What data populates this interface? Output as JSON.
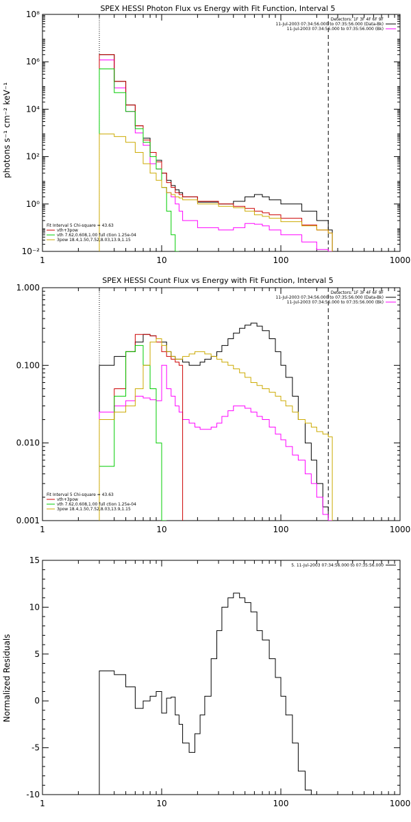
{
  "chart_data": [
    {
      "type": "line",
      "title": "SPEX HESSI Photon Flux vs Energy with Fit Function, Interval 5",
      "ylabel": "photons s⁻¹ cm⁻² keV⁻¹",
      "xlabel": "",
      "xscale": "log",
      "yscale": "log",
      "xlim": [
        1,
        1000
      ],
      "ylim": [
        0.01,
        100000000
      ],
      "xticks": [
        1,
        10,
        100,
        1000
      ],
      "xtick_labels": [
        "1",
        "10",
        "100",
        "1000"
      ],
      "yticks": [
        0.01,
        1,
        100,
        10000,
        1000000,
        100000000
      ],
      "ytick_labels": [
        "10⁻²",
        "10⁰",
        "10²",
        "10⁴",
        "10⁶",
        "10⁸"
      ],
      "vlines": [
        {
          "x": 3,
          "style": "dotted"
        },
        {
          "x": 250,
          "style": "dashed"
        }
      ],
      "legend_top": [
        {
          "text": "Detectors: 1F 3F 4F 6F 9F",
          "color": ""
        },
        {
          "text": "11-Jul-2003 07:34:56.000 to 07:35:56.000 (Data-Bk)",
          "color": "#000000"
        },
        {
          "text": "11-Jul-2003 07:34:56.000 to 07:35:56.000 (Bk)",
          "color": "#ff00ff"
        }
      ],
      "legend_bottom": [
        {
          "text": "Fit Interval 5   Chi-square = 43.63",
          "color": ""
        },
        {
          "text": "vth+3pow",
          "color": "#cc0000"
        },
        {
          "text": "vth 7.62,0.608,1.00  full ction 1.25e-04",
          "color": "#00cc00"
        },
        {
          "text": "3pow 18.4,1.50,7.52,8.03,13.9,1.15",
          "color": "#ccaa00"
        }
      ],
      "edges": [
        3,
        4,
        5,
        6,
        7,
        8,
        9,
        10,
        11,
        12,
        13,
        14,
        15,
        20,
        30,
        40,
        50,
        60,
        70,
        80,
        100,
        150,
        200,
        250,
        270
      ],
      "series": [
        {
          "name": "",
          "color": "#000000",
          "values": [
            2000000,
            150000,
            15000,
            2000,
            600,
            150,
            70,
            20,
            10,
            6,
            4,
            3,
            2,
            1.2,
            1,
            1.3,
            2,
            2.5,
            2,
            1.5,
            1,
            0.5,
            0.2,
            0.08
          ]
        },
        {
          "name": "",
          "color": "#ff00ff",
          "values": [
            1200000,
            80000,
            8000,
            1000,
            300,
            50,
            30,
            5,
            3,
            2,
            1,
            0.5,
            0.2,
            0.1,
            0.08,
            0.1,
            0.15,
            0.14,
            0.12,
            0.08,
            0.05,
            0.025,
            0.012,
            0.008
          ]
        },
        {
          "name": "vth+3pow",
          "color": "#cc0000",
          "values": [
            2000000,
            150000,
            15000,
            2000,
            500,
            150,
            60,
            20,
            8,
            5,
            3,
            2.5,
            2,
            1.3,
            1,
            0.8,
            0.65,
            0.5,
            0.42,
            0.35,
            0.25,
            0.13,
            0.08,
            0.06
          ]
        },
        {
          "name": "vth 7.62,0.608,1.00  full ction 1.25e-04",
          "color": "#00cc00",
          "values": [
            500000,
            50000,
            8000,
            1500,
            400,
            100,
            30,
            5,
            0.5,
            0.05,
            0.01
          ]
        },
        {
          "name": "3pow 18.4,1.50,7.52,8.03,13.9,1.15",
          "color": "#ccaa00",
          "values": [
            900,
            700,
            400,
            150,
            50,
            20,
            10,
            5,
            3,
            2.5,
            2,
            1.8,
            1.5,
            1,
            0.8,
            0.7,
            0.5,
            0.35,
            0.3,
            0.25,
            0.18,
            0.12,
            0.08,
            0.06
          ]
        }
      ]
    },
    {
      "type": "line",
      "title": "SPEX HESSI Count Flux vs Energy with Fit Function, Interval 5",
      "ylabel": "",
      "xlabel": "",
      "xscale": "log",
      "yscale": "log",
      "xlim": [
        1,
        1000
      ],
      "ylim": [
        0.001,
        1
      ],
      "xticks": [
        1,
        10,
        100,
        1000
      ],
      "xtick_labels": [
        "1",
        "10",
        "100",
        "1000"
      ],
      "yticks": [
        0.001,
        0.01,
        0.1,
        1
      ],
      "ytick_labels": [
        "0.001",
        "0.010",
        "0.100",
        "1.000"
      ],
      "vlines": [
        {
          "x": 3,
          "style": "dotted"
        },
        {
          "x": 250,
          "style": "dashed"
        }
      ],
      "legend_top": [
        {
          "text": "Detectors: 1F 3F 4F 6F 9F",
          "color": ""
        },
        {
          "text": "11-Jul-2003 07:34:56.000 to 07:35:56.000 (Data-Bk)",
          "color": "#000000"
        },
        {
          "text": "11-Jul-2003 07:34:56.000 to 07:35:56.000 (Bk)",
          "color": "#ff00ff"
        }
      ],
      "legend_bottom": [
        {
          "text": "Fit Interval 5   Chi-square = 43.63",
          "color": ""
        },
        {
          "text": "vth+3pow",
          "color": "#cc0000"
        },
        {
          "text": "vth 7.62,0.608,1.00  full ction 1.25e-04",
          "color": "#00cc00"
        },
        {
          "text": "3pow 18.4,1.50,7.52,8.03,13.9,1.15",
          "color": "#ccaa00"
        }
      ],
      "edges": [
        3,
        4,
        5,
        6,
        7,
        8,
        9,
        10,
        11,
        12,
        13,
        14,
        15,
        17,
        19,
        21,
        23,
        26,
        29,
        32,
        36,
        40,
        45,
        50,
        56,
        63,
        70,
        80,
        90,
        100,
        110,
        125,
        140,
        160,
        180,
        200,
        225,
        250,
        270
      ],
      "series": [
        {
          "name": "",
          "color": "#000000",
          "values": [
            0.1,
            0.13,
            0.15,
            0.2,
            0.25,
            0.24,
            0.22,
            0.2,
            0.15,
            0.13,
            0.12,
            0.12,
            0.11,
            0.1,
            0.1,
            0.11,
            0.12,
            0.13,
            0.15,
            0.18,
            0.22,
            0.26,
            0.3,
            0.33,
            0.35,
            0.32,
            0.28,
            0.22,
            0.15,
            0.1,
            0.07,
            0.04,
            0.02,
            0.01,
            0.006,
            0.003,
            0.0015,
            0.001
          ]
        },
        {
          "name": "",
          "color": "#ff00ff",
          "values": [
            0.025,
            0.03,
            0.035,
            0.04,
            0.038,
            0.036,
            0.035,
            0.1,
            0.05,
            0.04,
            0.03,
            0.025,
            0.02,
            0.018,
            0.016,
            0.015,
            0.015,
            0.016,
            0.018,
            0.022,
            0.026,
            0.03,
            0.03,
            0.028,
            0.025,
            0.022,
            0.02,
            0.016,
            0.013,
            0.011,
            0.009,
            0.007,
            0.006,
            0.004,
            0.003,
            0.002,
            0.0012,
            0.001
          ]
        },
        {
          "name": "vth+3pow",
          "color": "#cc0000",
          "values": [
            0.02,
            0.05,
            0.15,
            0.25,
            0.25,
            0.24,
            0.2,
            0.15,
            0.13,
            0.12,
            0.11,
            0.1
          ]
        },
        {
          "name": "vth 7.62,0.608,1.00  full ction 1.25e-04",
          "color": "#00cc00",
          "values": [
            0.005,
            0.04,
            0.15,
            0.18,
            0.1,
            0.05,
            0.01,
            0.001
          ]
        },
        {
          "name": "3pow 18.4,1.50,7.52,8.03,13.9,1.15",
          "color": "#ccaa00",
          "values": [
            0.02,
            0.025,
            0.03,
            0.05,
            0.1,
            0.2,
            0.22,
            0.18,
            0.15,
            0.13,
            0.12,
            0.12,
            0.13,
            0.14,
            0.15,
            0.15,
            0.14,
            0.13,
            0.12,
            0.11,
            0.1,
            0.09,
            0.08,
            0.07,
            0.06,
            0.055,
            0.05,
            0.045,
            0.04,
            0.035,
            0.03,
            0.025,
            0.02,
            0.018,
            0.016,
            0.014,
            0.013,
            0.012
          ]
        }
      ]
    },
    {
      "type": "line",
      "title": "",
      "ylabel": "Normalized Residuals",
      "xlabel": "",
      "xscale": "log",
      "yscale": "linear",
      "xlim": [
        1,
        1000
      ],
      "ylim": [
        -10,
        15
      ],
      "xticks": [
        1,
        10,
        100,
        1000
      ],
      "xtick_labels": [
        "1",
        "10",
        "100",
        "1000"
      ],
      "yticks": [
        -10,
        -5,
        0,
        5,
        10,
        15
      ],
      "ytick_labels": [
        "-10",
        "-5",
        "0",
        "5",
        "10",
        "15"
      ],
      "vlines": [],
      "legend_top": [
        {
          "text": "5. 11-Jul-2003 07:34:56.000 to 07:35:56.000",
          "color": "#000000"
        }
      ],
      "legend_bottom": [],
      "edges": [
        3,
        4,
        5,
        6,
        7,
        8,
        9,
        10,
        11,
        12,
        13,
        14,
        15,
        17,
        19,
        21,
        23,
        26,
        29,
        32,
        36,
        40,
        45,
        50,
        56,
        63,
        70,
        80,
        90,
        100,
        110,
        125,
        140,
        160,
        180,
        200,
        225,
        250
      ],
      "series": [
        {
          "name": "5. 11-Jul-2003 07:34:56.000 to 07:35:56.000",
          "color": "#000000",
          "values": [
            3.2,
            2.8,
            1.5,
            -0.8,
            0,
            0.5,
            1,
            -1.3,
            0.3,
            0.4,
            -1.5,
            -2.5,
            -4.5,
            -5.5,
            -3.5,
            -1.5,
            0.5,
            4.5,
            7.5,
            10,
            11,
            11.5,
            11,
            10.5,
            9.5,
            7.5,
            6.5,
            4.5,
            2.5,
            0.5,
            -1.5,
            -4.5,
            -7.5,
            -9.5,
            -10,
            -10,
            -10
          ]
        }
      ]
    }
  ]
}
